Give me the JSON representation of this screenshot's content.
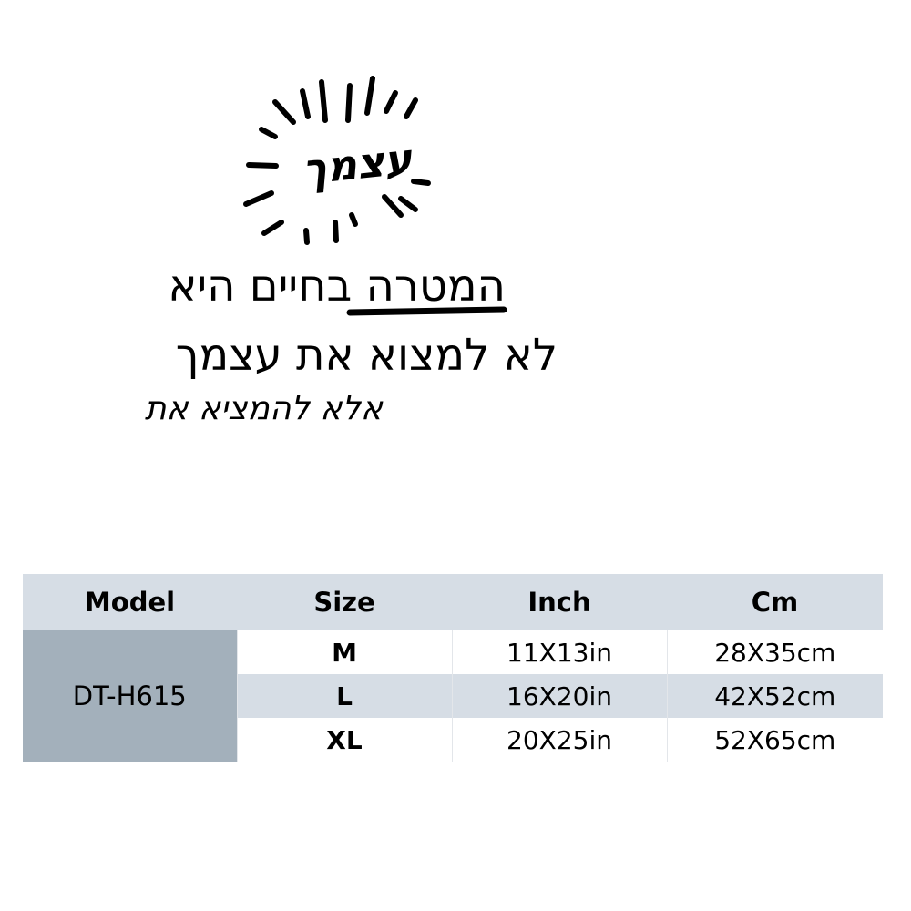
{
  "decal": {
    "sun_word": "עצמך",
    "line1": "המטרה בחיים היא",
    "line1_emphasis": "המטרה",
    "line2": "לא למצוא את עצמך",
    "line2_emphasis": "עצמך",
    "line3": "אלא להמציא את",
    "color": "#000000"
  },
  "table": {
    "headers": [
      "Model",
      "Size",
      "Inch",
      "Cm"
    ],
    "model": "DT-H615",
    "rows": [
      {
        "size": "M",
        "inch": "11X13in",
        "cm": "28X35cm"
      },
      {
        "size": "L",
        "inch": "16X20in",
        "cm": "42X52cm"
      },
      {
        "size": "XL",
        "inch": "20X25in",
        "cm": "52X65cm"
      }
    ],
    "header_color": "#d6dde5",
    "model_cell_color": "#a3b0bb"
  }
}
